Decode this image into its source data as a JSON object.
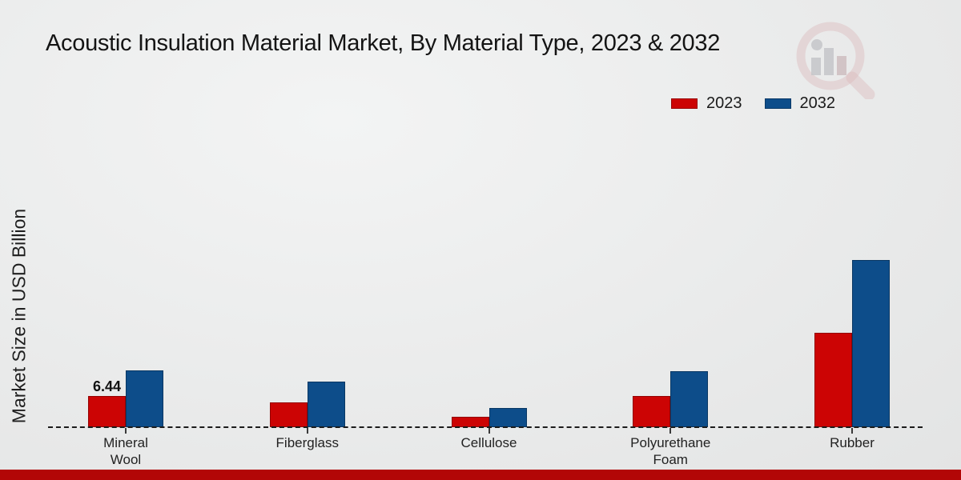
{
  "page": {
    "footer_accent_color": "#b20606",
    "background_color": "#e9eaea"
  },
  "watermark": {
    "name": "magnifier-bar-chart-logo",
    "ring_color": "#cf8f93",
    "bars_color": "#a6a6ac"
  },
  "chart_data": {
    "type": "bar",
    "title": "Acoustic Insulation Material Market, By Material Type, 2023 & 2032",
    "ylabel": "Market Size in USD Billion",
    "xlabel": "",
    "unit": "USD Billion",
    "categories": [
      "Mineral Wool",
      "Fiberglass",
      "Cellulose",
      "Polyurethane Foam",
      "Rubber"
    ],
    "categories_display": [
      "Mineral\nWool",
      "Fiberglass",
      "Cellulose",
      "Polyurethane\nFoam",
      "Rubber"
    ],
    "series": [
      {
        "name": "2023",
        "color": "#cc0404",
        "values": [
          6.44,
          5.1,
          2.1,
          6.4,
          19.5
        ]
      },
      {
        "name": "2032",
        "color": "#0d4d8a",
        "values": [
          11.7,
          9.4,
          4.0,
          11.6,
          34.5
        ]
      }
    ],
    "data_labels": [
      {
        "series_index": 0,
        "category_index": 0,
        "text": "6.44"
      }
    ],
    "ylim": [
      0,
      40
    ],
    "grid": false,
    "legend_position": "top-right",
    "axis_style": "dashed-baseline-only"
  }
}
